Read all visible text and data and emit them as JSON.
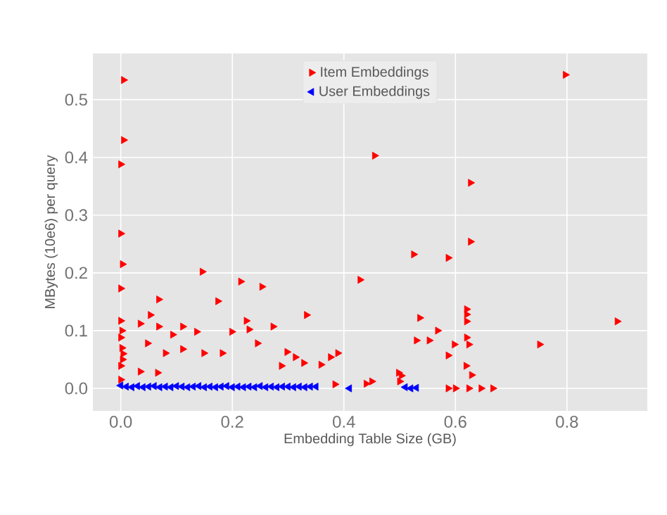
{
  "chart_data": {
    "type": "scatter",
    "xlabel": "Embedding Table Size (GB)",
    "ylabel": "MBytes (10e6) per query",
    "xlim": [
      -0.05,
      0.944
    ],
    "ylim": [
      -0.039,
      0.58
    ],
    "xticks": [
      {
        "value": 0,
        "label": "0.0"
      },
      {
        "value": 0.2,
        "label": "0.2"
      },
      {
        "value": 0.4,
        "label": "0.4"
      },
      {
        "value": 0.6,
        "label": "0.6"
      },
      {
        "value": 0.8,
        "label": "0.8"
      }
    ],
    "yticks": [
      {
        "value": 0,
        "label": "0.0"
      },
      {
        "value": 0.1,
        "label": "0.1"
      },
      {
        "value": 0.2,
        "label": "0.2"
      },
      {
        "value": 0.3,
        "label": "0.3"
      },
      {
        "value": 0.4,
        "label": "0.4"
      },
      {
        "value": 0.5,
        "label": "0.5"
      }
    ],
    "grid": true,
    "legend": "top",
    "marker": "triangle",
    "series": [
      {
        "name": "Item Embeddings",
        "color": "#ff0000",
        "x": [
          0.005,
          0.005,
          0,
          0,
          0.003,
          0,
          0,
          0,
          0,
          0,
          0.002,
          0.004,
          0.002,
          0.003,
          0.146,
          0.215,
          0.253,
          0.068,
          0.174,
          0.333,
          0.053,
          0.035,
          0.068,
          0.111,
          0.093,
          0.136,
          0.199,
          0.225,
          0.23,
          0.273,
          0.048,
          0.08,
          0.149,
          0.182,
          0.111,
          0.245,
          0.298,
          0.288,
          0.313,
          0.328,
          0.359,
          0.376,
          0.389,
          0.035,
          0.066,
          0.384,
          0.44,
          0.45,
          0.503,
          0.498,
          0.5,
          0.797,
          0.455,
          0.627,
          0.627,
          0.525,
          0.587,
          0.429,
          0.536,
          0.568,
          0.53,
          0.553,
          0.598,
          0.62,
          0.62,
          0.62,
          0.62,
          0.624,
          0.587,
          0.619,
          0.629,
          0.751,
          0.89,
          0.587,
          0.6,
          0.624,
          0.646,
          0.667
        ],
        "values": [
          0.534,
          0.43,
          0.388,
          0.268,
          0.215,
          0.173,
          0.117,
          0.088,
          0.039,
          0.015,
          0.1,
          0.06,
          0.07,
          0.05,
          0.202,
          0.185,
          0.176,
          0.154,
          0.151,
          0.127,
          0.127,
          0.112,
          0.107,
          0.107,
          0.093,
          0.098,
          0.098,
          0.117,
          0.102,
          0.107,
          0.078,
          0.061,
          0.061,
          0.061,
          0.068,
          0.078,
          0.063,
          0.039,
          0.054,
          0.044,
          0.041,
          0.054,
          0.061,
          0.029,
          0.027,
          0.007,
          0.008,
          0.012,
          0.022,
          0.027,
          0.012,
          0.543,
          0.403,
          0.356,
          0.254,
          0.232,
          0.226,
          0.188,
          0.122,
          0.1,
          0.083,
          0.083,
          0.076,
          0.137,
          0.128,
          0.116,
          0.088,
          0.076,
          0.057,
          0.039,
          0.023,
          0.076,
          0.116,
          0,
          0,
          0,
          0,
          0
        ]
      },
      {
        "name": "User Embeddings",
        "color": "#0000ff",
        "x": [
          0,
          0.01,
          0.02,
          0.03,
          0.04,
          0.05,
          0.06,
          0.07,
          0.08,
          0.09,
          0.1,
          0.11,
          0.12,
          0.13,
          0.14,
          0.15,
          0.16,
          0.17,
          0.18,
          0.19,
          0.2,
          0.21,
          0.22,
          0.23,
          0.24,
          0.25,
          0.26,
          0.27,
          0.28,
          0.29,
          0.3,
          0.31,
          0.32,
          0.33,
          0.34,
          0.35,
          0.41,
          0.51,
          0.52,
          0.53
        ],
        "values": [
          0.005,
          0.003,
          0.002,
          0.004,
          0.002,
          0.003,
          0.004,
          0.002,
          0.003,
          0.002,
          0.004,
          0.003,
          0.002,
          0.003,
          0.004,
          0.002,
          0.003,
          0.002,
          0.003,
          0.004,
          0.002,
          0.003,
          0.002,
          0.003,
          0.002,
          0.004,
          0.002,
          0.003,
          0.002,
          0.003,
          0.003,
          0.002,
          0.003,
          0.002,
          0.003,
          0.003,
          0,
          0.002,
          0,
          0.001
        ]
      }
    ]
  }
}
